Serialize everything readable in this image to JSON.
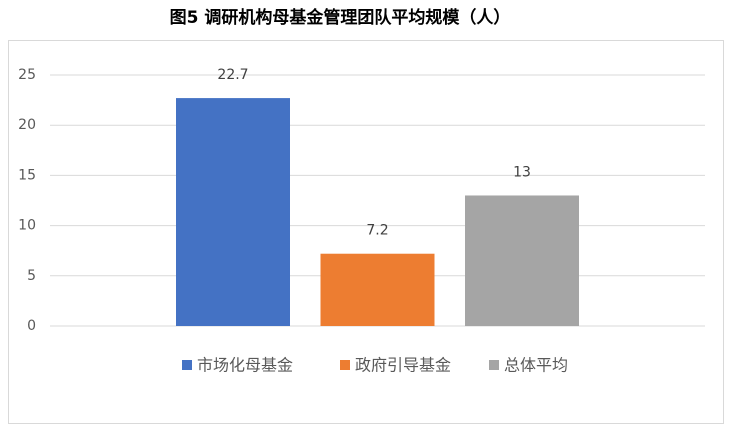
{
  "chart_data": {
    "type": "bar",
    "title": "图5 调研机构母基金管理团队平均规模（人）",
    "categories": [
      null
    ],
    "series": [
      {
        "name": "市场化母基金",
        "color": "#4472c4",
        "values": [
          22.7
        ]
      },
      {
        "name": "政府引导基金",
        "color": "#ed7d31",
        "values": [
          7.2
        ]
      },
      {
        "name": "总体平均",
        "color": "#a5a5a5",
        "values": [
          13
        ]
      }
    ],
    "ylim": [
      0,
      25
    ],
    "yticks": [
      0,
      5,
      10,
      15,
      20,
      25
    ],
    "grid": true,
    "legend": "bottom"
  }
}
